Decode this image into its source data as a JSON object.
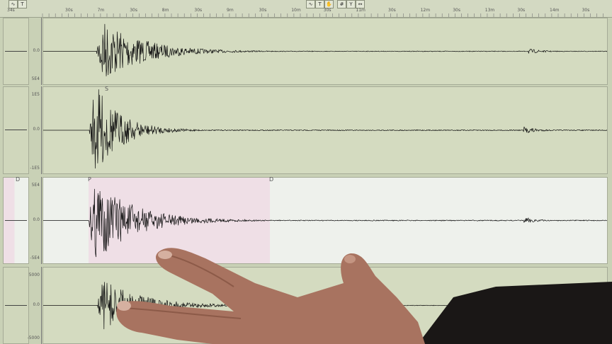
{
  "toolbar": {
    "left_icons": [
      "waveform-icon",
      "pick-icon"
    ],
    "center_icons": [
      "waveform-icon",
      "pick-icon",
      "hand-icon",
      "grid-icon",
      "filter-icon",
      "zoom-icon"
    ],
    "left_glyphs": [
      "∿",
      "T"
    ],
    "center_glyphs": [
      "∿",
      "T",
      "✋",
      "#",
      "Y",
      "↔"
    ]
  },
  "time_axis": [
    "34s",
    "30s",
    "7m",
    "30s",
    "8m",
    "30s",
    "9m",
    "30s",
    "10m",
    "30s",
    "11m",
    "30s",
    "12m",
    "30s",
    "13m",
    "30s",
    "14m",
    "30s"
  ],
  "channels": [
    {
      "top": "",
      "mid": "0.0",
      "bottom": "5E4",
      "markers": [],
      "highlighted": false
    },
    {
      "top": "1E5",
      "mid": "0.0",
      "bottom": "-1E5",
      "markers": [
        "S"
      ],
      "highlighted": false
    },
    {
      "top": "5E4",
      "mid": "0.0",
      "bottom": "-5E4",
      "markers": [
        "D",
        "P",
        "D"
      ],
      "highlighted": true
    },
    {
      "top": "5000",
      "mid": "0.0",
      "bottom": "-5000",
      "markers": [],
      "highlighted": false
    }
  ],
  "colors": {
    "background": "#c9d1b6",
    "plot": "#d4dbc0",
    "selected": "#eef1ec",
    "pick_window": "#efdfe6",
    "trace": "#111111",
    "skin": "#b07a62",
    "sleeve": "#1a1716"
  }
}
